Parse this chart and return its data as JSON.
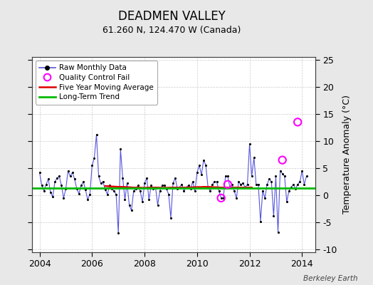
{
  "title": "DEADMEN VALLEY",
  "subtitle": "61.260 N, 124.470 W (Canada)",
  "ylabel": "Temperature Anomaly (°C)",
  "credit": "Berkeley Earth",
  "xlim": [
    2003.7,
    2014.5
  ],
  "ylim": [
    -10.5,
    25.5
  ],
  "yticks": [
    -10,
    -5,
    0,
    5,
    10,
    15,
    20,
    25
  ],
  "xticks": [
    2004,
    2006,
    2008,
    2010,
    2012,
    2014
  ],
  "bg_color": "#e8e8e8",
  "plot_bg_color": "#ffffff",
  "raw_color": "#5555dd",
  "dot_color": "#000000",
  "ma_color": "#dd0000",
  "trend_color": "#00bb00",
  "qc_color": "#ff00ff",
  "long_term_trend_y": 1.3,
  "raw_monthly": [
    [
      2004.0,
      4.2
    ],
    [
      2004.083,
      1.8
    ],
    [
      2004.167,
      0.8
    ],
    [
      2004.25,
      2.0
    ],
    [
      2004.333,
      3.0
    ],
    [
      2004.417,
      0.5
    ],
    [
      2004.5,
      -0.3
    ],
    [
      2004.583,
      2.5
    ],
    [
      2004.667,
      3.2
    ],
    [
      2004.75,
      3.5
    ],
    [
      2004.833,
      1.8
    ],
    [
      2004.917,
      -0.5
    ],
    [
      2005.0,
      1.2
    ],
    [
      2005.083,
      4.5
    ],
    [
      2005.167,
      3.5
    ],
    [
      2005.25,
      4.2
    ],
    [
      2005.333,
      3.0
    ],
    [
      2005.417,
      1.2
    ],
    [
      2005.5,
      0.3
    ],
    [
      2005.583,
      1.8
    ],
    [
      2005.667,
      2.5
    ],
    [
      2005.75,
      1.0
    ],
    [
      2005.833,
      -0.8
    ],
    [
      2005.917,
      0.2
    ],
    [
      2006.0,
      5.5
    ],
    [
      2006.083,
      6.8
    ],
    [
      2006.167,
      11.2
    ],
    [
      2006.25,
      3.5
    ],
    [
      2006.333,
      2.2
    ],
    [
      2006.417,
      2.5
    ],
    [
      2006.5,
      1.0
    ],
    [
      2006.583,
      0.2
    ],
    [
      2006.667,
      1.8
    ],
    [
      2006.75,
      1.2
    ],
    [
      2006.833,
      0.8
    ],
    [
      2006.917,
      0.2
    ],
    [
      2007.0,
      -7.0
    ],
    [
      2007.083,
      8.5
    ],
    [
      2007.167,
      3.2
    ],
    [
      2007.25,
      -0.8
    ],
    [
      2007.333,
      2.2
    ],
    [
      2007.417,
      -1.8
    ],
    [
      2007.5,
      -2.8
    ],
    [
      2007.583,
      0.8
    ],
    [
      2007.667,
      1.2
    ],
    [
      2007.75,
      1.8
    ],
    [
      2007.833,
      0.8
    ],
    [
      2007.917,
      -1.2
    ],
    [
      2008.0,
      2.2
    ],
    [
      2008.083,
      3.2
    ],
    [
      2008.167,
      -0.8
    ],
    [
      2008.25,
      1.8
    ],
    [
      2008.333,
      1.2
    ],
    [
      2008.417,
      1.5
    ],
    [
      2008.5,
      -1.8
    ],
    [
      2008.583,
      0.8
    ],
    [
      2008.667,
      1.8
    ],
    [
      2008.75,
      1.8
    ],
    [
      2008.833,
      1.2
    ],
    [
      2008.917,
      0.2
    ],
    [
      2009.0,
      -4.2
    ],
    [
      2009.083,
      2.2
    ],
    [
      2009.167,
      3.2
    ],
    [
      2009.25,
      1.2
    ],
    [
      2009.333,
      1.5
    ],
    [
      2009.417,
      2.0
    ],
    [
      2009.5,
      0.8
    ],
    [
      2009.583,
      1.5
    ],
    [
      2009.667,
      1.8
    ],
    [
      2009.75,
      1.2
    ],
    [
      2009.833,
      2.5
    ],
    [
      2009.917,
      0.8
    ],
    [
      2010.0,
      4.2
    ],
    [
      2010.083,
      5.5
    ],
    [
      2010.167,
      3.8
    ],
    [
      2010.25,
      6.5
    ],
    [
      2010.333,
      5.5
    ],
    [
      2010.417,
      1.5
    ],
    [
      2010.5,
      0.8
    ],
    [
      2010.583,
      2.0
    ],
    [
      2010.667,
      2.5
    ],
    [
      2010.75,
      2.5
    ],
    [
      2010.833,
      0.8
    ],
    [
      2010.917,
      -0.5
    ],
    [
      2011.0,
      -0.5
    ],
    [
      2011.083,
      3.5
    ],
    [
      2011.167,
      3.5
    ],
    [
      2011.25,
      1.5
    ],
    [
      2011.333,
      2.0
    ],
    [
      2011.417,
      0.8
    ],
    [
      2011.5,
      -0.5
    ],
    [
      2011.583,
      2.5
    ],
    [
      2011.667,
      2.0
    ],
    [
      2011.75,
      2.2
    ],
    [
      2011.833,
      1.5
    ],
    [
      2011.917,
      2.0
    ],
    [
      2012.0,
      9.5
    ],
    [
      2012.083,
      3.5
    ],
    [
      2012.167,
      7.0
    ],
    [
      2012.25,
      2.0
    ],
    [
      2012.333,
      2.0
    ],
    [
      2012.417,
      -4.8
    ],
    [
      2012.5,
      0.8
    ],
    [
      2012.583,
      -0.5
    ],
    [
      2012.667,
      2.0
    ],
    [
      2012.75,
      3.0
    ],
    [
      2012.833,
      2.5
    ],
    [
      2012.917,
      -3.8
    ],
    [
      2013.0,
      3.5
    ],
    [
      2013.083,
      -6.8
    ],
    [
      2013.167,
      4.5
    ],
    [
      2013.25,
      4.0
    ],
    [
      2013.333,
      3.5
    ],
    [
      2013.417,
      -1.2
    ],
    [
      2013.5,
      0.8
    ],
    [
      2013.583,
      1.5
    ],
    [
      2013.667,
      2.0
    ],
    [
      2013.75,
      1.2
    ],
    [
      2013.833,
      2.0
    ],
    [
      2013.917,
      2.5
    ],
    [
      2014.0,
      4.5
    ],
    [
      2014.083,
      2.0
    ],
    [
      2014.167,
      3.5
    ]
  ],
  "qc_fails": [
    [
      2010.917,
      -0.5
    ],
    [
      2011.167,
      2.0
    ],
    [
      2013.25,
      6.5
    ],
    [
      2013.833,
      13.5
    ]
  ],
  "moving_avg": [
    [
      2006.5,
      1.7
    ],
    [
      2006.583,
      1.68
    ],
    [
      2006.667,
      1.65
    ],
    [
      2006.75,
      1.62
    ],
    [
      2006.833,
      1.6
    ],
    [
      2006.917,
      1.58
    ],
    [
      2007.0,
      1.55
    ],
    [
      2007.083,
      1.55
    ],
    [
      2007.167,
      1.55
    ],
    [
      2007.25,
      1.52
    ],
    [
      2007.333,
      1.5
    ],
    [
      2007.417,
      1.48
    ],
    [
      2007.5,
      1.45
    ],
    [
      2007.583,
      1.42
    ],
    [
      2007.667,
      1.42
    ],
    [
      2007.75,
      1.42
    ],
    [
      2007.833,
      1.4
    ],
    [
      2007.917,
      1.38
    ],
    [
      2008.0,
      1.38
    ],
    [
      2008.083,
      1.4
    ],
    [
      2008.167,
      1.42
    ],
    [
      2008.25,
      1.42
    ],
    [
      2008.333,
      1.42
    ],
    [
      2008.417,
      1.42
    ],
    [
      2008.5,
      1.42
    ],
    [
      2008.583,
      1.4
    ],
    [
      2008.667,
      1.38
    ],
    [
      2008.75,
      1.38
    ],
    [
      2008.833,
      1.38
    ],
    [
      2008.917,
      1.4
    ],
    [
      2009.0,
      1.42
    ],
    [
      2009.083,
      1.42
    ],
    [
      2009.167,
      1.42
    ],
    [
      2009.25,
      1.42
    ],
    [
      2009.333,
      1.42
    ],
    [
      2009.417,
      1.42
    ],
    [
      2009.5,
      1.42
    ],
    [
      2009.583,
      1.42
    ],
    [
      2009.667,
      1.45
    ],
    [
      2009.75,
      1.45
    ],
    [
      2009.833,
      1.48
    ],
    [
      2009.917,
      1.5
    ],
    [
      2010.0,
      1.5
    ],
    [
      2010.083,
      1.52
    ],
    [
      2010.167,
      1.52
    ],
    [
      2010.25,
      1.55
    ],
    [
      2010.333,
      1.55
    ],
    [
      2010.417,
      1.55
    ],
    [
      2010.5,
      1.52
    ],
    [
      2010.583,
      1.5
    ],
    [
      2010.667,
      1.48
    ],
    [
      2010.75,
      1.48
    ],
    [
      2010.833,
      1.45
    ],
    [
      2010.917,
      1.42
    ],
    [
      2011.0,
      1.42
    ],
    [
      2011.083,
      1.42
    ],
    [
      2011.167,
      1.42
    ],
    [
      2011.25,
      1.42
    ],
    [
      2011.333,
      1.42
    ],
    [
      2011.417,
      1.42
    ],
    [
      2011.5,
      1.42
    ],
    [
      2011.583,
      1.42
    ],
    [
      2011.667,
      1.42
    ],
    [
      2011.75,
      1.42
    ],
    [
      2011.833,
      1.42
    ],
    [
      2011.917,
      1.42
    ],
    [
      2012.0,
      1.42
    ],
    [
      2012.083,
      1.42
    ]
  ]
}
